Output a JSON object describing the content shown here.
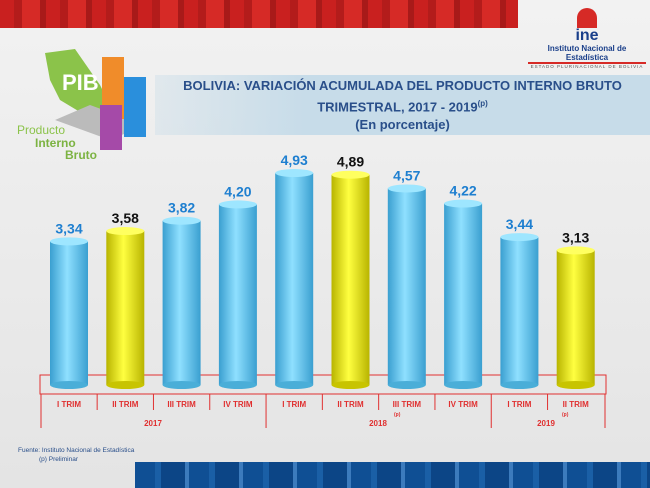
{
  "header": {
    "logo_name": "ine",
    "logo_institution": "Instituto Nacional de Estadística",
    "logo_subtitle": "ESTADO PLURINACIONAL DE BOLIVIA",
    "pib_label": "PIB",
    "pib_line1": "Producto",
    "pib_line2": "Interno",
    "pib_line3": "Bruto"
  },
  "footer": {
    "source": "Fuente: Instituto Nacional de Estadística",
    "note": "(p) Preliminar"
  },
  "colors": {
    "blue_bar": "#5bc4f0",
    "yellow_bar": "#f2ee00",
    "blue_label": "#1e7fd0",
    "axis_red": "#e03030"
  },
  "chart_data": {
    "type": "bar",
    "title": "BOLIVIA: VARIACIÓN ACUMULADA DEL PRODUCTO INTERNO BRUTO",
    "title2": "TRIMESTRAL, 2017 - 2019",
    "title_sup": "(p)",
    "subtitle": "(En porcentaje)",
    "categories": [
      "I  TRIM",
      "II  TRIM",
      "III TRIM",
      "IV TRIM",
      "I  TRIM",
      "II  TRIM",
      "III TRIM",
      "IV TRIM",
      "I  TRIM",
      "II  TRIM"
    ],
    "values": [
      3.34,
      3.58,
      3.82,
      4.2,
      4.93,
      4.89,
      4.57,
      4.22,
      3.44,
      3.13
    ],
    "value_labels": [
      "3,34",
      "3,58",
      "3,82",
      "4,20",
      "4,93",
      "4,89",
      "4,57",
      "4,22",
      "3,44",
      "3,13"
    ],
    "highlight": [
      false,
      true,
      false,
      false,
      false,
      true,
      false,
      false,
      false,
      true
    ],
    "groups": [
      {
        "label": "2017",
        "sup": ""
      },
      {
        "label": "2018",
        "sup": "(p)"
      },
      {
        "label": "2019",
        "sup": "(p)"
      }
    ],
    "ylim": [
      0,
      5
    ]
  }
}
